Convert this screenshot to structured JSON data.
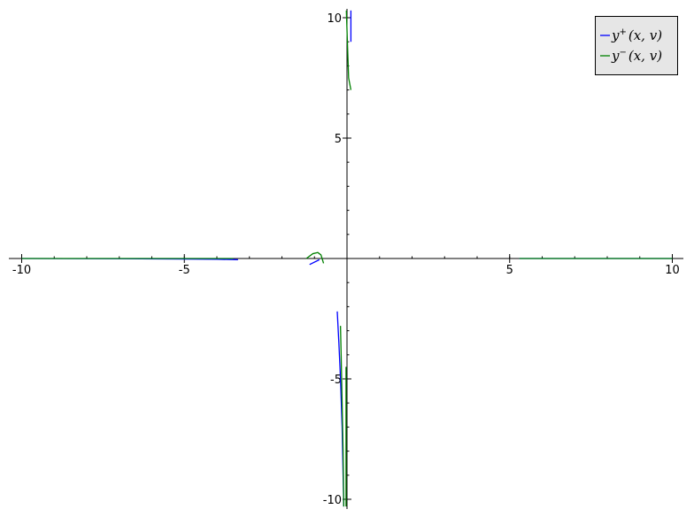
{
  "chart_data": {
    "type": "line",
    "title": "",
    "xlabel": "",
    "ylabel": "",
    "xlim": [
      -10,
      10
    ],
    "ylim": [
      -10,
      10
    ],
    "grid": false,
    "legend_position": "top-right",
    "x_ticks": [
      {
        "value": -10,
        "label": "-10"
      },
      {
        "value": -5,
        "label": "-5"
      },
      {
        "value": 5,
        "label": "5"
      },
      {
        "value": 10,
        "label": "10"
      }
    ],
    "y_ticks": [
      {
        "value": 10,
        "label": "10"
      },
      {
        "value": 5,
        "label": "5"
      },
      {
        "value": -5,
        "label": "-5"
      },
      {
        "value": -10,
        "label": "-10"
      }
    ],
    "series": [
      {
        "name": "y⁺(x, v)",
        "legend_main": "y",
        "legend_sup": "+",
        "legend_args": "(x, v)",
        "color": "#0000ff",
        "segments": [
          [
            [
              -10,
              0.0
            ],
            [
              -7,
              -0.01
            ],
            [
              -5,
              -0.02
            ],
            [
              -4,
              -0.03
            ],
            [
              -3.35,
              -0.05
            ]
          ],
          [
            [
              -1.15,
              -0.25
            ],
            [
              -0.85,
              -0.05
            ]
          ],
          [
            [
              -0.3,
              -2.2
            ],
            [
              -0.25,
              -3.5
            ],
            [
              -0.2,
              -5.0
            ],
            [
              -0.15,
              -7.0
            ],
            [
              -0.1,
              -10.3
            ]
          ],
          [
            [
              0.12,
              10.3
            ],
            [
              0.12,
              9.0
            ]
          ],
          [
            [
              5.3,
              0.0
            ],
            [
              7,
              0.0
            ],
            [
              10,
              0.0
            ]
          ]
        ]
      },
      {
        "name": "y⁻(x, v)",
        "legend_main": "y",
        "legend_sup": "−",
        "legend_args": "(x, v)",
        "color": "#008000",
        "segments": [
          [
            [
              -10,
              0.0
            ],
            [
              -7,
              0.0
            ],
            [
              -5,
              0.0
            ],
            [
              -3.5,
              0.0
            ]
          ],
          [
            [
              -1.25,
              0.0
            ],
            [
              -1.05,
              0.2
            ],
            [
              -0.9,
              0.25
            ],
            [
              -0.8,
              0.15
            ],
            [
              -0.72,
              -0.2
            ]
          ],
          [
            [
              -0.2,
              -2.8
            ],
            [
              -0.18,
              -4.0
            ],
            [
              -0.15,
              -6.0
            ],
            [
              -0.12,
              -8.0
            ],
            [
              -0.1,
              -10.3
            ]
          ],
          [
            [
              -0.03,
              -4.5
            ],
            [
              -0.03,
              -10.3
            ]
          ],
          [
            [
              -0.02,
              10.3
            ],
            [
              0.05,
              7.5
            ],
            [
              0.12,
              7.0
            ]
          ],
          [
            [
              5.3,
              0.0
            ],
            [
              10,
              0.0
            ]
          ]
        ]
      }
    ]
  }
}
